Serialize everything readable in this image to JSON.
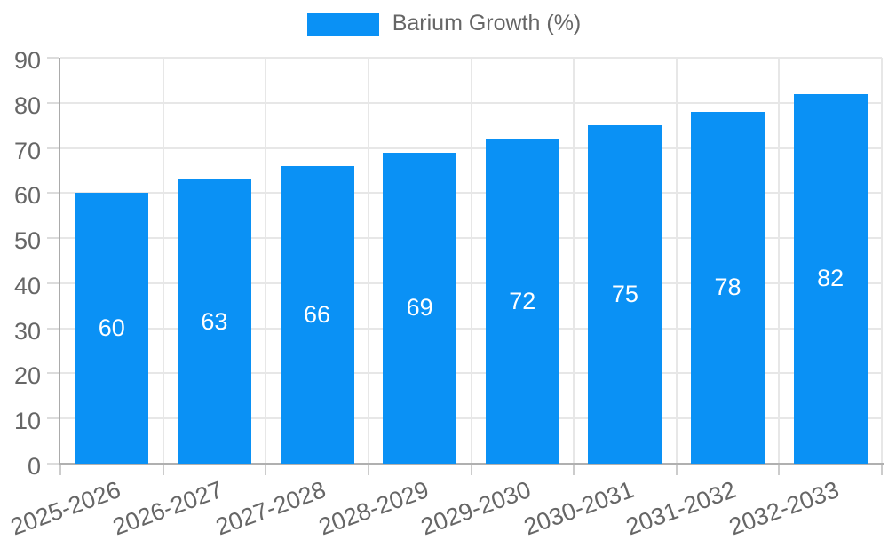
{
  "legend": {
    "label": "Barium Growth (%)",
    "swatch_color": "#0a91f5"
  },
  "chart_data": {
    "type": "bar",
    "title": "",
    "xlabel": "",
    "ylabel": "",
    "categories": [
      "2025-2026",
      "2026-2027",
      "2027-2028",
      "2028-2029",
      "2029-2030",
      "2030-2031",
      "2031-2032",
      "2032-2033"
    ],
    "series": [
      {
        "name": "Barium Growth (%)",
        "values": [
          60,
          63,
          66,
          69,
          72,
          75,
          78,
          82
        ]
      }
    ],
    "value_labels_shown": true,
    "ylim": [
      0,
      90
    ],
    "yticks": [
      0,
      10,
      20,
      30,
      40,
      50,
      60,
      70,
      80,
      90
    ],
    "grid": true,
    "legend_position": "top",
    "colors": {
      "bar": "#0a91f5",
      "value_label": "#ffffff",
      "axis_text": "#666666",
      "grid_line": "#e7e7e7",
      "axis_line": "#b0b0b0"
    }
  }
}
